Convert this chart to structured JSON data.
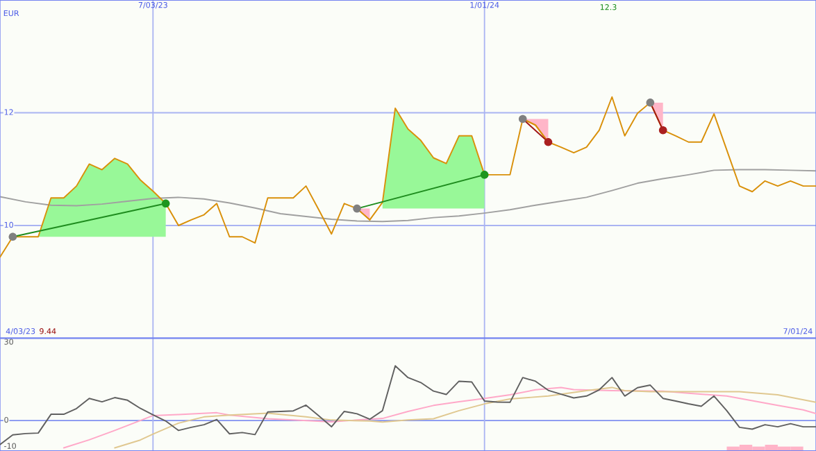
{
  "chart_data": [
    {
      "type": "line",
      "ylabel": "EUR",
      "x": [
        "2023-04-10",
        "2023-04-17",
        "2023-04-24",
        "2023-05-01",
        "2023-05-08",
        "2023-05-15",
        "2023-05-22",
        "2023-05-29",
        "2023-06-05",
        "2023-06-12",
        "2023-06-19",
        "2023-06-26",
        "2023-07-03",
        "2023-07-10",
        "2023-07-17",
        "2023-07-24",
        "2023-07-31",
        "2023-08-07",
        "2023-08-14",
        "2023-08-21",
        "2023-08-28",
        "2023-09-04",
        "2023-09-11",
        "2023-09-18",
        "2023-09-25",
        "2023-10-02",
        "2023-10-09",
        "2023-10-16",
        "2023-10-23",
        "2023-10-30",
        "2023-11-06",
        "2023-11-13",
        "2023-11-20",
        "2023-11-27",
        "2023-12-04",
        "2023-12-11",
        "2023-12-18",
        "2023-12-25",
        "2024-01-01",
        "2024-01-08",
        "2024-01-15",
        "2024-01-22",
        "2024-01-29",
        "2024-02-05",
        "2024-02-12",
        "2024-02-19",
        "2024-02-26",
        "2024-03-04",
        "2024-03-11",
        "2024-03-18",
        "2024-03-25",
        "2024-04-01",
        "2024-04-08",
        "2024-04-15",
        "2024-04-22",
        "2024-04-29",
        "2024-05-06",
        "2024-05-13",
        "2024-05-20",
        "2024-05-27",
        "2024-06-03",
        "2024-06-10",
        "2024-06-17",
        "2024-06-24",
        "2024-07-01"
      ],
      "xlim": [
        "2023-04-10",
        "2024-07-01"
      ],
      "xticks": [
        {
          "value": "2023-07-03",
          "label": "7/03/23"
        },
        {
          "value": "2024-01-01",
          "label": "1/01/24"
        }
      ],
      "ylim": [
        8.0,
        14.0
      ],
      "yticks": [
        10,
        12
      ],
      "grid": true,
      "annotations": [
        "4/03/23",
        "9.44",
        "12.3",
        "7/01/24"
      ],
      "series": [
        {
          "color": "#a0a0a0",
          "x": [
            "2023-04-10",
            "2023-04-24",
            "2023-05-08",
            "2023-05-22",
            "2023-06-05",
            "2023-06-19",
            "2023-07-03",
            "2023-07-17",
            "2023-07-31",
            "2023-08-14",
            "2023-08-28",
            "2023-09-11",
            "2023-09-25",
            "2023-10-09",
            "2023-10-23",
            "2023-11-06",
            "2023-11-20",
            "2023-12-04",
            "2023-12-18",
            "2024-01-01",
            "2024-01-15",
            "2024-01-29",
            "2024-02-12",
            "2024-02-26",
            "2024-03-11",
            "2024-03-25",
            "2024-04-08",
            "2024-04-22",
            "2024-05-06",
            "2024-05-20",
            "2024-06-03",
            "2024-06-17",
            "2024-07-01"
          ],
          "values": [
            10.51,
            10.42,
            10.36,
            10.35,
            10.38,
            10.43,
            10.48,
            10.5,
            10.47,
            10.4,
            10.31,
            10.21,
            10.16,
            10.11,
            10.08,
            10.07,
            10.09,
            10.14,
            10.17,
            10.22,
            10.28,
            10.36,
            10.43,
            10.5,
            10.62,
            10.75,
            10.83,
            10.9,
            10.98,
            10.99,
            10.99,
            10.98,
            10.97
          ]
        },
        {
          "color": "#d9900a",
          "values": [
            9.44,
            9.8,
            9.8,
            9.8,
            10.49,
            10.49,
            10.7,
            11.09,
            10.99,
            11.19,
            11.09,
            10.81,
            10.61,
            10.39,
            10.0,
            10.1,
            10.19,
            10.39,
            9.8,
            9.8,
            9.69,
            10.49,
            10.49,
            10.49,
            10.7,
            10.28,
            9.85,
            10.39,
            10.3,
            10.1,
            10.41,
            12.08,
            11.71,
            11.51,
            11.2,
            11.1,
            11.59,
            11.59,
            10.9,
            10.9,
            10.9,
            11.89,
            11.78,
            11.48,
            11.39,
            11.29,
            11.39,
            11.69,
            12.28,
            11.59,
            11.99,
            12.18,
            11.69,
            11.59,
            11.48,
            11.48,
            11.98,
            11.34,
            10.7,
            10.6,
            10.79,
            10.7,
            10.79,
            10.7,
            10.7
          ],
          "lower": [
            null,
            9.8,
            9.8,
            9.8,
            9.8,
            9.8,
            9.8,
            9.8,
            9.8,
            9.8,
            9.8,
            9.8,
            9.8,
            9.8,
            null,
            null,
            null,
            null,
            null,
            null,
            null,
            null,
            null,
            null,
            null,
            null,
            null,
            null,
            null,
            null,
            10.3,
            10.3,
            10.3,
            10.3,
            10.3,
            10.3,
            10.3,
            10.3,
            10.3,
            null,
            null,
            null,
            null,
            null,
            null,
            null,
            null,
            null,
            null,
            null,
            null,
            null,
            null,
            null,
            null,
            null,
            null,
            null,
            null,
            null,
            null,
            null,
            null,
            null,
            null
          ],
          "upper": [
            null,
            9.8,
            9.8,
            9.8,
            10.49,
            10.49,
            10.7,
            11.09,
            10.99,
            11.19,
            11.09,
            10.81,
            10.61,
            10.39,
            null,
            null,
            null,
            null,
            null,
            null,
            null,
            null,
            null,
            null,
            null,
            null,
            null,
            null,
            null,
            null,
            10.41,
            12.08,
            11.71,
            11.51,
            11.2,
            11.1,
            11.59,
            11.59,
            10.9,
            null,
            null,
            null,
            null,
            null,
            null,
            null,
            null,
            null,
            null,
            null,
            null,
            null,
            null,
            null,
            null,
            null,
            null,
            null,
            null,
            null,
            null,
            null,
            null,
            null,
            null
          ],
          "colors": [
            null,
            "#98f898",
            "#98f898",
            "#98f898",
            "#98f898",
            "#98f898",
            "#98f898",
            "#98f898",
            "#98f898",
            "#98f898",
            "#98f898",
            "#98f898",
            "#98f898",
            "#98f898",
            null,
            null,
            null,
            null,
            null,
            null,
            null,
            null,
            null,
            null,
            null,
            null,
            null,
            null,
            null,
            null,
            "#98f898",
            "#98f898",
            "#98f898",
            "#98f898",
            "#98f898",
            "#98f898",
            "#98f898",
            "#98f898",
            "#98f898",
            null,
            null,
            null,
            null,
            null,
            null,
            null,
            null,
            null,
            null,
            null,
            null,
            null,
            null,
            null,
            null,
            null,
            null,
            null,
            null,
            null,
            null,
            null,
            null,
            null,
            null
          ]
        },
        {
          "color": "#d9900a",
          "values": [
            null,
            null,
            null,
            null,
            null,
            null,
            null,
            null,
            null,
            null,
            null,
            null,
            null,
            null,
            null,
            null,
            null,
            null,
            null,
            null,
            null,
            null,
            null,
            null,
            null,
            null,
            null,
            null,
            10.3,
            10.1,
            null,
            null,
            null,
            null,
            null,
            null,
            null,
            null,
            null,
            null,
            null,
            11.89,
            11.78,
            11.48,
            null,
            null,
            null,
            null,
            null,
            null,
            null,
            12.18,
            11.69,
            null,
            null,
            null,
            null,
            null,
            null,
            null,
            null,
            null,
            null,
            null,
            null
          ],
          "lower": [
            null,
            null,
            null,
            null,
            null,
            null,
            null,
            null,
            null,
            null,
            null,
            null,
            null,
            null,
            null,
            null,
            null,
            null,
            null,
            null,
            null,
            null,
            null,
            null,
            null,
            null,
            null,
            null,
            10.3,
            10.1,
            null,
            null,
            null,
            null,
            null,
            null,
            null,
            null,
            null,
            null,
            null,
            11.89,
            11.78,
            11.48,
            null,
            null,
            null,
            null,
            null,
            null,
            null,
            12.18,
            11.69,
            null,
            null,
            null,
            null,
            null,
            null,
            null,
            null,
            null,
            null,
            null,
            null
          ],
          "upper": [
            null,
            null,
            null,
            null,
            null,
            null,
            null,
            null,
            null,
            null,
            null,
            null,
            null,
            null,
            null,
            null,
            null,
            null,
            null,
            null,
            null,
            null,
            null,
            null,
            null,
            null,
            null,
            null,
            10.3,
            10.3,
            null,
            null,
            null,
            null,
            null,
            null,
            null,
            null,
            null,
            null,
            null,
            11.89,
            11.89,
            11.89,
            null,
            null,
            null,
            null,
            null,
            null,
            null,
            12.18,
            12.18,
            null,
            null,
            null,
            null,
            null,
            null,
            null,
            null,
            null,
            null,
            null,
            null
          ],
          "colors": [
            null,
            null,
            null,
            null,
            null,
            null,
            null,
            null,
            null,
            null,
            null,
            null,
            null,
            null,
            null,
            null,
            null,
            null,
            null,
            null,
            null,
            null,
            null,
            null,
            null,
            null,
            null,
            null,
            "#ffb6c8",
            "#ffb6c8",
            null,
            null,
            null,
            null,
            null,
            null,
            null,
            null,
            null,
            null,
            null,
            "#ffb6c8",
            "#ffb6c8",
            "#ffb6c8",
            null,
            null,
            null,
            null,
            null,
            null,
            null,
            "#ffb6c8",
            "#ffb6c8",
            null,
            null,
            null,
            null,
            null,
            null,
            null,
            null,
            null,
            null,
            null,
            null
          ]
        },
        {
          "color": "#1e8c1e",
          "x": [
            "2023-04-17",
            "2023-07-10"
          ],
          "values": [
            9.8,
            10.39
          ]
        },
        {
          "color": "#1e8c1e",
          "x": [
            "2023-10-23",
            "2024-01-01"
          ],
          "values": [
            10.3,
            10.9
          ]
        },
        {
          "color": "#a01818",
          "x": [
            "2024-01-22",
            "2024-02-05"
          ],
          "values": [
            11.89,
            11.48
          ]
        },
        {
          "color": "#a01818",
          "x": [
            "2024-04-01",
            "2024-04-08"
          ],
          "values": [
            12.18,
            11.69
          ]
        },
        {
          "type": "scatter",
          "marker": "circle",
          "color": "#808080",
          "x": [
            "2023-04-17",
            "2023-10-23",
            "2024-01-22",
            "2024-04-01"
          ],
          "values": [
            9.8,
            10.3,
            11.89,
            12.18
          ]
        },
        {
          "type": "scatter",
          "marker": "circle",
          "color": "#1e961e",
          "x": [
            "2023-07-10",
            "2024-01-01"
          ],
          "values": [
            10.39,
            10.9
          ]
        },
        {
          "type": "scatter",
          "marker": "circle",
          "color": "#aa2020",
          "x": [
            "2024-02-05",
            "2024-04-08"
          ],
          "values": [
            11.48,
            11.69
          ]
        }
      ]
    },
    {
      "type": "line",
      "x": [
        "2023-04-10",
        "2023-04-17",
        "2023-04-24",
        "2023-05-01",
        "2023-05-08",
        "2023-05-15",
        "2023-05-22",
        "2023-05-29",
        "2023-06-05",
        "2023-06-12",
        "2023-06-19",
        "2023-06-26",
        "2023-07-03",
        "2023-07-10",
        "2023-07-17",
        "2023-07-24",
        "2023-07-31",
        "2023-08-07",
        "2023-08-14",
        "2023-08-21",
        "2023-08-28",
        "2023-09-04",
        "2023-09-11",
        "2023-09-18",
        "2023-09-25",
        "2023-10-02",
        "2023-10-09",
        "2023-10-16",
        "2023-10-23",
        "2023-10-30",
        "2023-11-06",
        "2023-11-13",
        "2023-11-20",
        "2023-11-27",
        "2023-12-04",
        "2023-12-11",
        "2023-12-18",
        "2023-12-25",
        "2024-01-01",
        "2024-01-08",
        "2024-01-15",
        "2024-01-22",
        "2024-01-29",
        "2024-02-05",
        "2024-02-12",
        "2024-02-19",
        "2024-02-26",
        "2024-03-04",
        "2024-03-11",
        "2024-03-18",
        "2024-03-25",
        "2024-04-01",
        "2024-04-08",
        "2024-04-15",
        "2024-04-22",
        "2024-04-29",
        "2024-05-06",
        "2024-05-13",
        "2024-05-20",
        "2024-05-27",
        "2024-06-03",
        "2024-06-10",
        "2024-06-17",
        "2024-06-24",
        "2024-07-01"
      ],
      "xlim": [
        "2023-04-10",
        "2024-07-01"
      ],
      "xticks": [
        {
          "value": "2023-07-03",
          "label": null
        },
        {
          "value": "2024-01-01",
          "label": null
        }
      ],
      "ylim": [
        -11.7,
        31.6
      ],
      "yticks": [
        -10,
        0,
        30
      ],
      "tick_labels": "y",
      "grid": "x",
      "ref_lines": [
        {
          "axis": "y",
          "value": 0,
          "color": "#8090f0"
        }
      ],
      "series": [
        {
          "type": "bar",
          "color": "#ffb4c8",
          "x": [
            "2024-05-16T12:00",
            "2024-05-23T12:00",
            "2024-05-30T12:00",
            "2024-06-06T12:00",
            "2024-06-13T12:00",
            "2024-06-20T12:00"
          ],
          "base": [
            -11.7,
            -11.7,
            -11.7,
            -11.7,
            -11.7,
            -11.7
          ],
          "values": [
            1.7,
            2.4,
            1.7,
            2.4,
            1.7,
            1.7
          ]
        },
        {
          "color": "#ffa8c8",
          "x": [
            "2023-05-15",
            "2023-05-29",
            "2023-06-12",
            "2023-06-26",
            "2023-07-03",
            "2023-07-17",
            "2023-08-07",
            "2023-08-14",
            "2023-09-04",
            "2023-09-18",
            "2023-10-09",
            "2023-10-23",
            "2023-11-06",
            "2023-11-20",
            "2023-12-04",
            "2023-12-18",
            "2024-01-01",
            "2024-01-15",
            "2024-01-29",
            "2024-02-12",
            "2024-02-19",
            "2024-03-11",
            "2024-04-08",
            "2024-04-22",
            "2024-05-13",
            "2024-05-27",
            "2024-06-10",
            "2024-06-24",
            "2024-07-01"
          ],
          "values": [
            -10.5,
            -7.4,
            -3.8,
            0.0,
            1.9,
            2.3,
            3.0,
            2.1,
            0.7,
            0.2,
            -0.5,
            0.2,
            0.8,
            3.5,
            5.8,
            7.2,
            8.5,
            9.9,
            11.8,
            12.7,
            11.9,
            11.5,
            11.3,
            10.5,
            9.4,
            7.6,
            5.8,
            4.1,
            2.7
          ]
        },
        {
          "color": "#e0c890",
          "x": [
            "2023-06-12",
            "2023-06-26",
            "2023-07-03",
            "2023-07-17",
            "2023-07-31",
            "2023-08-14",
            "2023-09-04",
            "2023-09-25",
            "2023-10-09",
            "2023-10-30",
            "2023-11-06",
            "2023-11-20",
            "2023-12-04",
            "2023-12-18",
            "2024-01-01",
            "2024-01-15",
            "2024-02-05",
            "2024-02-26",
            "2024-03-11",
            "2024-03-18",
            "2024-04-01",
            "2024-05-20",
            "2024-06-10",
            "2024-07-01"
          ],
          "values": [
            -10.5,
            -7.5,
            -5.2,
            -1.0,
            1.4,
            2.1,
            2.8,
            1.4,
            0.2,
            -0.2,
            -0.6,
            0.2,
            0.7,
            3.8,
            6.4,
            8.3,
            9.4,
            11.5,
            12.7,
            11.5,
            11.1,
            11.1,
            9.9,
            7.0
          ]
        },
        {
          "color": "#606060",
          "values": [
            -9.2,
            -5.5,
            -5.0,
            -4.8,
            2.4,
            2.4,
            4.6,
            8.5,
            7.2,
            8.8,
            7.8,
            4.7,
            2.2,
            -0.2,
            -3.8,
            -2.6,
            -1.6,
            0.4,
            -5.1,
            -4.6,
            -5.4,
            3.3,
            3.5,
            3.7,
            5.9,
            1.8,
            -2.4,
            3.5,
            2.6,
            0.5,
            3.8,
            21.0,
            16.5,
            14.6,
            11.3,
            10.0,
            15.1,
            14.8,
            7.5,
            7.1,
            7.0,
            16.5,
            15.1,
            11.6,
            10.1,
            8.7,
            9.4,
            11.8,
            16.5,
            9.4,
            12.6,
            13.6,
            8.5,
            7.5,
            6.4,
            5.5,
            9.4,
            3.8,
            -2.6,
            -3.3,
            -1.6,
            -2.4,
            -1.2,
            -2.4,
            -2.4
          ]
        }
      ]
    }
  ]
}
